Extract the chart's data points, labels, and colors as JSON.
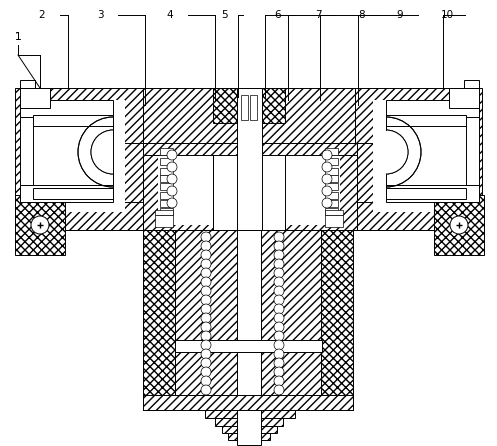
{
  "bg": "#ffffff",
  "lc": "#000000",
  "fig_w": 4.97,
  "fig_h": 4.46,
  "dpi": 100,
  "labels": [
    [
      "1",
      18,
      37,
      18,
      55,
      40,
      88
    ],
    [
      "2",
      42,
      15,
      60,
      15,
      68,
      88
    ],
    [
      "3",
      100,
      15,
      118,
      15,
      145,
      105
    ],
    [
      "4",
      170,
      15,
      188,
      15,
      215,
      100
    ],
    [
      "5",
      225,
      15,
      243,
      15,
      238,
      97
    ],
    [
      "6",
      278,
      15,
      296,
      15,
      265,
      97
    ],
    [
      "7",
      318,
      15,
      336,
      15,
      288,
      100
    ],
    [
      "8",
      362,
      15,
      380,
      15,
      320,
      100
    ],
    [
      "9",
      400,
      15,
      418,
      15,
      358,
      105
    ],
    [
      "10",
      447,
      15,
      465,
      15,
      443,
      88
    ]
  ]
}
